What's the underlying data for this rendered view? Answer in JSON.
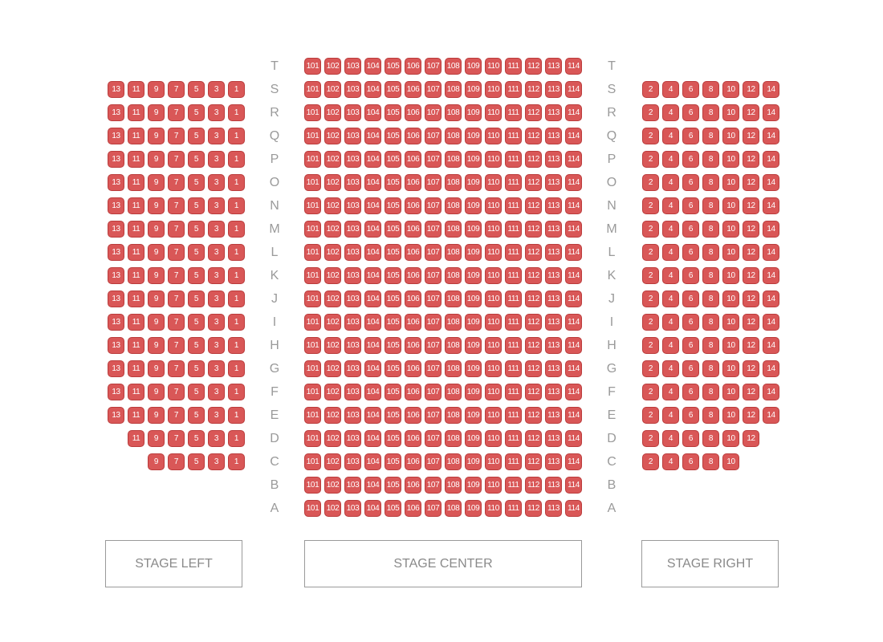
{
  "colors": {
    "seat_fill": "#d95757",
    "seat_border": "#bb3c3c",
    "label": "#9a9a9a",
    "stage_border": "#9a9a9a"
  },
  "stages": [
    {
      "id": "left",
      "label": "STAGE LEFT"
    },
    {
      "id": "center",
      "label": "STAGE CENTER"
    },
    {
      "id": "right",
      "label": "STAGE RIGHT"
    }
  ],
  "rows": [
    {
      "label": "T",
      "left": [],
      "center": [
        101,
        102,
        103,
        104,
        105,
        106,
        107,
        108,
        109,
        110,
        111,
        112,
        113,
        114
      ],
      "right": []
    },
    {
      "label": "S",
      "left": [
        13,
        11,
        9,
        7,
        5,
        3,
        1
      ],
      "center": [
        101,
        102,
        103,
        104,
        105,
        106,
        107,
        108,
        109,
        110,
        111,
        112,
        113,
        114
      ],
      "right": [
        2,
        4,
        6,
        8,
        10,
        12,
        14
      ]
    },
    {
      "label": "R",
      "left": [
        13,
        11,
        9,
        7,
        5,
        3,
        1
      ],
      "center": [
        101,
        102,
        103,
        104,
        105,
        106,
        107,
        108,
        109,
        110,
        111,
        112,
        113,
        114
      ],
      "right": [
        2,
        4,
        6,
        8,
        10,
        12,
        14
      ]
    },
    {
      "label": "Q",
      "left": [
        13,
        11,
        9,
        7,
        5,
        3,
        1
      ],
      "center": [
        101,
        102,
        103,
        104,
        105,
        106,
        107,
        108,
        109,
        110,
        111,
        112,
        113,
        114
      ],
      "right": [
        2,
        4,
        6,
        8,
        10,
        12,
        14
      ]
    },
    {
      "label": "P",
      "left": [
        13,
        11,
        9,
        7,
        5,
        3,
        1
      ],
      "center": [
        101,
        102,
        103,
        104,
        105,
        106,
        107,
        108,
        109,
        110,
        111,
        112,
        113,
        114
      ],
      "right": [
        2,
        4,
        6,
        8,
        10,
        12,
        14
      ]
    },
    {
      "label": "O",
      "left": [
        13,
        11,
        9,
        7,
        5,
        3,
        1
      ],
      "center": [
        101,
        102,
        103,
        104,
        105,
        106,
        107,
        108,
        109,
        110,
        111,
        112,
        113,
        114
      ],
      "right": [
        2,
        4,
        6,
        8,
        10,
        12,
        14
      ]
    },
    {
      "label": "N",
      "left": [
        13,
        11,
        9,
        7,
        5,
        3,
        1
      ],
      "center": [
        101,
        102,
        103,
        104,
        105,
        106,
        107,
        108,
        109,
        110,
        111,
        112,
        113,
        114
      ],
      "right": [
        2,
        4,
        6,
        8,
        10,
        12,
        14
      ]
    },
    {
      "label": "M",
      "left": [
        13,
        11,
        9,
        7,
        5,
        3,
        1
      ],
      "center": [
        101,
        102,
        103,
        104,
        105,
        106,
        107,
        108,
        109,
        110,
        111,
        112,
        113,
        114
      ],
      "right": [
        2,
        4,
        6,
        8,
        10,
        12,
        14
      ]
    },
    {
      "label": "L",
      "left": [
        13,
        11,
        9,
        7,
        5,
        3,
        1
      ],
      "center": [
        101,
        102,
        103,
        104,
        105,
        106,
        107,
        108,
        109,
        110,
        111,
        112,
        113,
        114
      ],
      "right": [
        2,
        4,
        6,
        8,
        10,
        12,
        14
      ]
    },
    {
      "label": "K",
      "left": [
        13,
        11,
        9,
        7,
        5,
        3,
        1
      ],
      "center": [
        101,
        102,
        103,
        104,
        105,
        106,
        107,
        108,
        109,
        110,
        111,
        112,
        113,
        114
      ],
      "right": [
        2,
        4,
        6,
        8,
        10,
        12,
        14
      ]
    },
    {
      "label": "J",
      "left": [
        13,
        11,
        9,
        7,
        5,
        3,
        1
      ],
      "center": [
        101,
        102,
        103,
        104,
        105,
        106,
        107,
        108,
        109,
        110,
        111,
        112,
        113,
        114
      ],
      "right": [
        2,
        4,
        6,
        8,
        10,
        12,
        14
      ]
    },
    {
      "label": "I",
      "left": [
        13,
        11,
        9,
        7,
        5,
        3,
        1
      ],
      "center": [
        101,
        102,
        103,
        104,
        105,
        106,
        107,
        108,
        109,
        110,
        111,
        112,
        113,
        114
      ],
      "right": [
        2,
        4,
        6,
        8,
        10,
        12,
        14
      ]
    },
    {
      "label": "H",
      "left": [
        13,
        11,
        9,
        7,
        5,
        3,
        1
      ],
      "center": [
        101,
        102,
        103,
        104,
        105,
        106,
        107,
        108,
        109,
        110,
        111,
        112,
        113,
        114
      ],
      "right": [
        2,
        4,
        6,
        8,
        10,
        12,
        14
      ]
    },
    {
      "label": "G",
      "left": [
        13,
        11,
        9,
        7,
        5,
        3,
        1
      ],
      "center": [
        101,
        102,
        103,
        104,
        105,
        106,
        107,
        108,
        109,
        110,
        111,
        112,
        113,
        114
      ],
      "right": [
        2,
        4,
        6,
        8,
        10,
        12,
        14
      ]
    },
    {
      "label": "F",
      "left": [
        13,
        11,
        9,
        7,
        5,
        3,
        1
      ],
      "center": [
        101,
        102,
        103,
        104,
        105,
        106,
        107,
        108,
        109,
        110,
        111,
        112,
        113,
        114
      ],
      "right": [
        2,
        4,
        6,
        8,
        10,
        12,
        14
      ]
    },
    {
      "label": "E",
      "left": [
        13,
        11,
        9,
        7,
        5,
        3,
        1
      ],
      "center": [
        101,
        102,
        103,
        104,
        105,
        106,
        107,
        108,
        109,
        110,
        111,
        112,
        113,
        114
      ],
      "right": [
        2,
        4,
        6,
        8,
        10,
        12,
        14
      ]
    },
    {
      "label": "D",
      "left": [
        11,
        9,
        7,
        5,
        3,
        1
      ],
      "center": [
        101,
        102,
        103,
        104,
        105,
        106,
        107,
        108,
        109,
        110,
        111,
        112,
        113,
        114
      ],
      "right": [
        2,
        4,
        6,
        8,
        10,
        12
      ]
    },
    {
      "label": "C",
      "left": [
        9,
        7,
        5,
        3,
        1
      ],
      "center": [
        101,
        102,
        103,
        104,
        105,
        106,
        107,
        108,
        109,
        110,
        111,
        112,
        113,
        114
      ],
      "right": [
        2,
        4,
        6,
        8,
        10
      ]
    },
    {
      "label": "B",
      "left": [],
      "center": [
        101,
        102,
        103,
        104,
        105,
        106,
        107,
        108,
        109,
        110,
        111,
        112,
        113,
        114
      ],
      "right": []
    },
    {
      "label": "A",
      "left": [],
      "center": [
        101,
        102,
        103,
        104,
        105,
        106,
        107,
        108,
        109,
        110,
        111,
        112,
        113,
        114
      ],
      "right": []
    }
  ]
}
